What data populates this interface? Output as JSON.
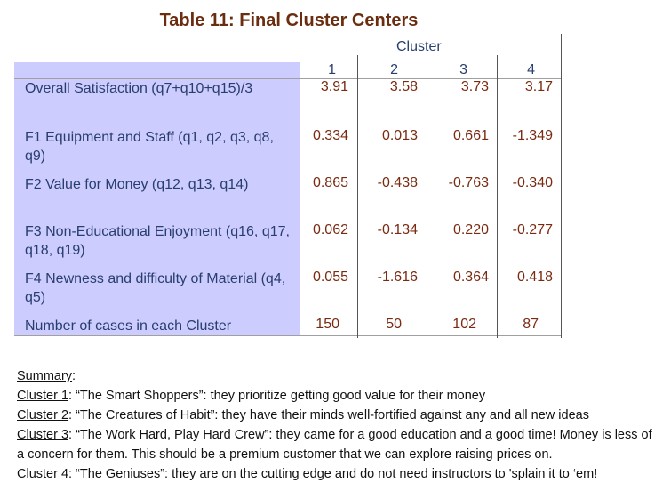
{
  "title": "Table 11: Final Cluster Centers",
  "table": {
    "group_header": "Cluster",
    "columns": [
      "1",
      "2",
      "3",
      "4"
    ],
    "rows": [
      {
        "label": "Overall Satisfaction (q7+q10+q15)/3",
        "values": [
          "3.91",
          "3.58",
          "3.73",
          "3.17"
        ]
      },
      {
        "label": "F1 Equipment and Staff (q1, q2, q3, q8, q9)",
        "values": [
          "0.334",
          "0.013",
          "0.661",
          "-1.349"
        ]
      },
      {
        "label": "F2 Value for Money (q12, q13, q14)",
        "values": [
          "0.865",
          "-0.438",
          "-0.763",
          "-0.340"
        ]
      },
      {
        "label": "F3 Non-Educational Enjoyment (q16, q17, q18, q19)",
        "values": [
          "0.062",
          "-0.134",
          "0.220",
          "-0.277"
        ]
      },
      {
        "label": "F4 Newness and difficulty of Material (q4, q5)",
        "values": [
          "0.055",
          "-1.616",
          "0.364",
          "0.418"
        ]
      },
      {
        "label": "Number of cases in each Cluster",
        "values": [
          "150",
          "50",
          "102",
          "87"
        ]
      }
    ]
  },
  "summary": {
    "heading": "Summary",
    "clusters": [
      {
        "name": "Cluster 1",
        "text": ": “The Smart Shoppers”: they prioritize getting good value for their money"
      },
      {
        "name": "Cluster 2",
        "text": ": “The Creatures of Habit”: they have their minds well-fortified against any and all new ideas"
      },
      {
        "name": "Cluster 3",
        "text": ": “The Work Hard, Play Hard Crew”: they came for a good education and a good time! Money is less of a concern for them. This should be a premium customer that we can explore raising prices on."
      },
      {
        "name": "Cluster 4",
        "text": ": “The Geniuses”: they are on the cutting edge and do not need instructors to 'splain it to ‘em!"
      }
    ]
  }
}
